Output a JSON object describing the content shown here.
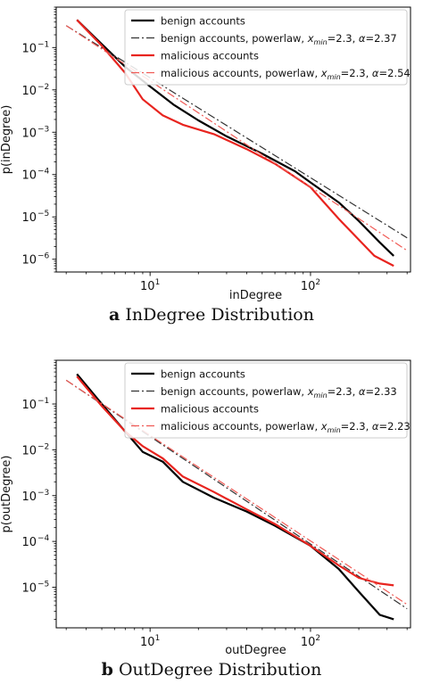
{
  "chart_data": [
    {
      "type": "line",
      "panel_letter": "a",
      "caption": "InDegree Distribution",
      "xlabel": "inDegree",
      "ylabel": "p(inDegree)",
      "x_scale": "log",
      "y_scale": "log",
      "xlim": [
        2.6,
        420
      ],
      "ylim": [
        5e-07,
        0.9
      ],
      "x_ticks": [
        {
          "value": 10,
          "base": "10",
          "exp": "1"
        },
        {
          "value": 100,
          "base": "10",
          "exp": "2"
        }
      ],
      "y_ticks": [
        {
          "value": 0.1,
          "base": "10",
          "exp": "−1"
        },
        {
          "value": 0.01,
          "base": "10",
          "exp": "−2"
        },
        {
          "value": 0.001,
          "base": "10",
          "exp": "−3"
        },
        {
          "value": 0.0001,
          "base": "10",
          "exp": "−4"
        },
        {
          "value": 1e-05,
          "base": "10",
          "exp": "−5"
        },
        {
          "value": 1e-06,
          "base": "10",
          "exp": "−6"
        }
      ],
      "legend_position": "top-right",
      "series": [
        {
          "name": "benign accounts",
          "color": "#000000",
          "style": "solid",
          "x": [
            3.5,
            5,
            7,
            10,
            14,
            20,
            30,
            50,
            80,
            100,
            150,
            200,
            270,
            330
          ],
          "y": [
            0.45,
            0.12,
            0.035,
            0.012,
            0.0045,
            0.0019,
            0.0008,
            0.00031,
            0.00012,
            6.5e-05,
            2.2e-05,
            8e-06,
            2.5e-06,
            1.2e-06
          ]
        },
        {
          "name": "benign accounts, powerlaw, ",
          "legend_tail": {
            "label": "x",
            "sub": "min",
            "xmin": "=2.3, ",
            "alpha_sym": "α",
            "alpha": "=2.37"
          },
          "color": "#333333",
          "style": "dashdot",
          "x": [
            3,
            400
          ],
          "y": [
            0.33,
            3.2e-06
          ]
        },
        {
          "name": "malicious accounts",
          "color": "#e8241f",
          "style": "solid",
          "x": [
            3.5,
            5,
            7,
            9,
            12,
            16,
            25,
            40,
            60,
            100,
            150,
            250,
            330
          ],
          "y": [
            0.45,
            0.11,
            0.025,
            0.006,
            0.0025,
            0.0015,
            0.0009,
            0.0004,
            0.00018,
            5e-05,
            9e-06,
            1.2e-06,
            7e-07
          ]
        },
        {
          "name": "malicious accounts, powerlaw, ",
          "legend_tail": {
            "label": "x",
            "sub": "min",
            "xmin": "=2.3, ",
            "alpha_sym": "α",
            "alpha": "=2.54"
          },
          "color": "#f05a55",
          "style": "dashdot",
          "x": [
            3,
            400
          ],
          "y": [
            0.33,
            1.6e-06
          ]
        }
      ]
    },
    {
      "type": "line",
      "panel_letter": "b",
      "caption": "OutDegree Distribution",
      "xlabel": "outDegree",
      "ylabel": "p(outDegree)",
      "x_scale": "log",
      "y_scale": "log",
      "xlim": [
        2.6,
        420
      ],
      "ylim": [
        1.3e-06,
        0.9
      ],
      "x_ticks": [
        {
          "value": 10,
          "base": "10",
          "exp": "1"
        },
        {
          "value": 100,
          "base": "10",
          "exp": "2"
        }
      ],
      "y_ticks": [
        {
          "value": 0.1,
          "base": "10",
          "exp": "−1"
        },
        {
          "value": 0.01,
          "base": "10",
          "exp": "−2"
        },
        {
          "value": 0.001,
          "base": "10",
          "exp": "−3"
        },
        {
          "value": 0.0001,
          "base": "10",
          "exp": "−4"
        },
        {
          "value": 1e-05,
          "base": "10",
          "exp": "−5"
        }
      ],
      "legend_position": "top-right",
      "series": [
        {
          "name": "benign accounts",
          "color": "#000000",
          "style": "solid",
          "x": [
            3.5,
            5,
            7,
            9,
            12,
            16,
            25,
            40,
            60,
            100,
            150,
            200,
            270,
            330
          ],
          "y": [
            0.45,
            0.1,
            0.025,
            0.009,
            0.0055,
            0.002,
            0.0009,
            0.00045,
            0.00022,
            8e-05,
            2.5e-05,
            8e-06,
            2.5e-06,
            2e-06
          ]
        },
        {
          "name": "benign accounts, powerlaw, ",
          "legend_tail": {
            "label": "x",
            "sub": "min",
            "xmin": "=2.3, ",
            "alpha_sym": "α",
            "alpha": "=2.33"
          },
          "color": "#333333",
          "style": "dashdot",
          "x": [
            3,
            400
          ],
          "y": [
            0.33,
            3.4e-06
          ]
        },
        {
          "name": "malicious accounts",
          "color": "#e8241f",
          "style": "solid",
          "x": [
            3.5,
            5,
            7,
            9,
            12,
            16,
            25,
            40,
            60,
            100,
            150,
            200,
            270,
            330
          ],
          "y": [
            0.4,
            0.09,
            0.025,
            0.012,
            0.0065,
            0.0026,
            0.0012,
            0.0005,
            0.00024,
            8e-05,
            3e-05,
            1.6e-05,
            1.2e-05,
            1.1e-05
          ]
        },
        {
          "name": "malicious accounts, powerlaw, ",
          "legend_tail": {
            "label": "x",
            "sub": "min",
            "xmin": "=2.3, ",
            "alpha_sym": "α",
            "alpha": "=2.23"
          },
          "color": "#f05a55",
          "style": "dashdot",
          "x": [
            3,
            400
          ],
          "y": [
            0.33,
            4.2e-06
          ]
        }
      ]
    }
  ]
}
